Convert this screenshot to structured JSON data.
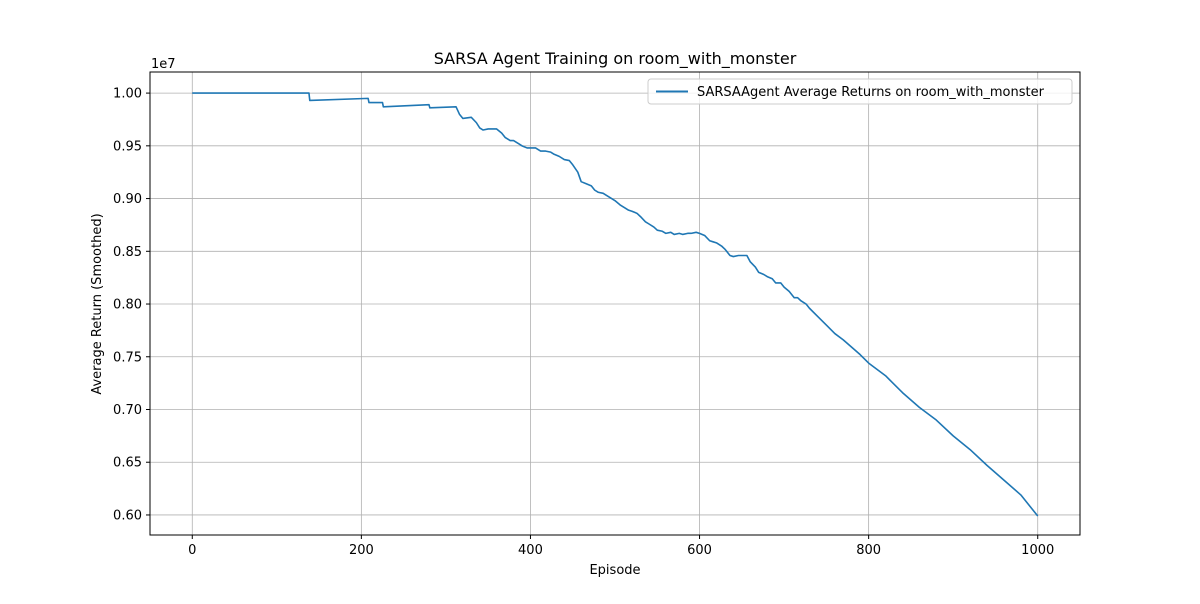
{
  "colors": {
    "line": "#1f77b4",
    "grid": "#b0b0b0",
    "axes": "#000000",
    "legend_border": "#cccccc"
  },
  "chart_data": {
    "type": "line",
    "title": "SARSA Agent Training on room_with_monster",
    "xlabel": "Episode",
    "ylabel": "Average Return (Smoothed)",
    "y_offset_text": "1e7",
    "xlim": [
      -50,
      1050
    ],
    "ylim": [
      5.81,
      10.2
    ],
    "x_ticks": [
      0,
      200,
      400,
      600,
      800,
      1000
    ],
    "x_tick_labels": [
      "0",
      "200",
      "400",
      "600",
      "800",
      "1000"
    ],
    "y_ticks": [
      6.0,
      6.5,
      7.0,
      7.5,
      8.0,
      8.5,
      9.0,
      9.5,
      10.0
    ],
    "y_tick_labels": [
      "0.60",
      "0.65",
      "0.70",
      "0.75",
      "0.80",
      "0.85",
      "0.90",
      "0.95",
      "1.00"
    ],
    "grid": true,
    "legend_position": "upper right",
    "series": [
      {
        "name": "SARSAAgent Average Returns on room_with_monster",
        "color": "#1f77b4",
        "x": [
          0,
          20,
          138,
          139,
          208,
          209,
          225,
          226,
          280,
          281,
          312,
          316,
          320,
          330,
          336,
          340,
          344,
          350,
          360,
          366,
          370,
          376,
          380,
          386,
          390,
          396,
          400,
          406,
          412,
          418,
          424,
          428,
          434,
          440,
          446,
          450,
          456,
          460,
          466,
          472,
          476,
          480,
          486,
          490,
          496,
          500,
          506,
          512,
          516,
          520,
          526,
          530,
          536,
          540,
          546,
          550,
          556,
          560,
          566,
          570,
          576,
          580,
          586,
          590,
          596,
          600,
          606,
          612,
          616,
          620,
          626,
          630,
          636,
          640,
          646,
          650,
          656,
          660,
          666,
          670,
          676,
          680,
          686,
          690,
          696,
          700,
          706,
          712,
          716,
          720,
          726,
          730,
          740,
          750,
          760,
          770,
          780,
          790,
          800,
          820,
          840,
          860,
          880,
          900,
          920,
          940,
          960,
          980,
          1000
        ],
        "y": [
          10.0,
          10.0,
          10.0,
          9.93,
          9.95,
          9.91,
          9.91,
          9.87,
          9.89,
          9.86,
          9.87,
          9.8,
          9.76,
          9.77,
          9.72,
          9.67,
          9.65,
          9.66,
          9.66,
          9.62,
          9.58,
          9.55,
          9.55,
          9.52,
          9.5,
          9.48,
          9.48,
          9.48,
          9.45,
          9.45,
          9.44,
          9.42,
          9.4,
          9.37,
          9.36,
          9.32,
          9.25,
          9.16,
          9.14,
          9.12,
          9.08,
          9.06,
          9.05,
          9.03,
          9.0,
          8.98,
          8.94,
          8.91,
          8.89,
          8.88,
          8.86,
          8.83,
          8.78,
          8.76,
          8.73,
          8.7,
          8.69,
          8.67,
          8.68,
          8.66,
          8.67,
          8.66,
          8.67,
          8.67,
          8.68,
          8.67,
          8.65,
          8.6,
          8.59,
          8.58,
          8.55,
          8.52,
          8.46,
          8.45,
          8.46,
          8.46,
          8.46,
          8.4,
          8.35,
          8.3,
          8.28,
          8.26,
          8.24,
          8.2,
          8.2,
          8.16,
          8.12,
          8.06,
          8.06,
          8.03,
          8.0,
          7.96,
          7.88,
          7.8,
          7.72,
          7.66,
          7.59,
          7.52,
          7.44,
          7.32,
          7.16,
          7.02,
          6.9,
          6.75,
          6.62,
          6.47,
          6.33,
          6.19,
          5.99
        ]
      }
    ]
  }
}
